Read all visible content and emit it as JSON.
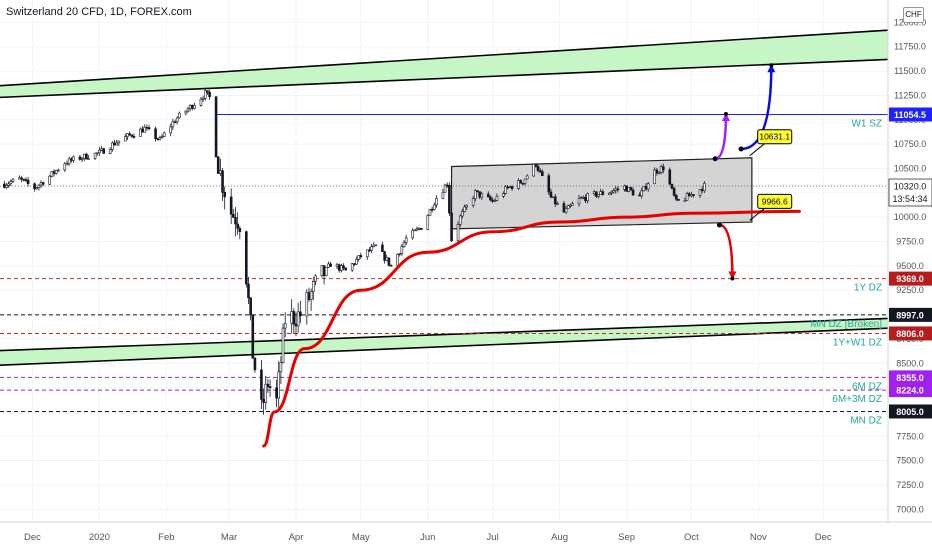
{
  "header": {
    "title": "Switzerland 20 CFD, 1D, FOREX.com",
    "currency_button": "CHF"
  },
  "colors": {
    "up_candle": "#131722",
    "down_candle": "#131722",
    "channel_fill": "#cfcfcf",
    "zone_fill": "#c6f5c6",
    "curve": "#e60000",
    "w1_line": "#1f22ff",
    "purple_arrow": "#a020f0",
    "blue_arrow": "#0a0ae6",
    "red_arrow": "#e60000",
    "zone_label_text": "#26a69a"
  },
  "chart_data": {
    "type": "candlestick",
    "symbol": "Switzerland 20 CFD",
    "interval": "1D",
    "source": "FOREX.com",
    "ylim": [
      6870,
      12230
    ],
    "y_ticks": [
      7000,
      7250,
      7500,
      7750,
      8000,
      8250,
      8500,
      8750,
      9000,
      9250,
      9500,
      9750,
      10000,
      10250,
      10500,
      10750,
      11000,
      11250,
      11500,
      11750,
      12000
    ],
    "y_tick_labels": [
      "7000.0",
      "7250.0",
      "7500.0",
      "7750.0",
      "8000.0",
      "8250.0",
      "8500.0",
      "8750.0",
      "9000.0",
      "9250.0",
      "9500.0",
      "9750.0",
      "10000.0",
      "10250.0",
      "10500.0",
      "10750.0",
      "11000.0",
      "11250.0",
      "11500.0",
      "11750.0",
      "12000.0"
    ],
    "x_tick_labels": [
      {
        "label": "Dec",
        "date": "2019-12-01"
      },
      {
        "label": "2020",
        "date": "2020-01-01"
      },
      {
        "label": "Feb",
        "date": "2020-02-01"
      },
      {
        "label": "Mar",
        "date": "2020-03-01"
      },
      {
        "label": "Apr",
        "date": "2020-04-01"
      },
      {
        "label": "May",
        "date": "2020-05-01"
      },
      {
        "label": "Jun",
        "date": "2020-06-01"
      },
      {
        "label": "Jul",
        "date": "2020-07-01"
      },
      {
        "label": "Aug",
        "date": "2020-08-01"
      },
      {
        "label": "Sep",
        "date": "2020-09-01"
      },
      {
        "label": "Oct",
        "date": "2020-10-01"
      },
      {
        "label": "Nov",
        "date": "2020-11-01"
      },
      {
        "label": "Dec",
        "date": "2020-12-01"
      }
    ],
    "xlim": [
      "2019-11-16",
      "2020-12-31"
    ],
    "price_path": [
      [
        "2019-11-18",
        10340
      ],
      [
        "2019-11-25",
        10390
      ],
      [
        "2019-12-02",
        10300
      ],
      [
        "2019-12-09",
        10420
      ],
      [
        "2019-12-16",
        10560
      ],
      [
        "2019-12-23",
        10610
      ],
      [
        "2020-01-01",
        10660
      ],
      [
        "2020-01-08",
        10760
      ],
      [
        "2020-01-15",
        10840
      ],
      [
        "2020-01-22",
        10910
      ],
      [
        "2020-01-29",
        10790
      ],
      [
        "2020-02-05",
        11000
      ],
      [
        "2020-02-12",
        11130
      ],
      [
        "2020-02-19",
        11270
      ],
      [
        "2020-02-21",
        11230
      ],
      [
        "2020-02-24",
        10650
      ],
      [
        "2020-02-27",
        10350
      ],
      [
        "2020-03-02",
        10050
      ],
      [
        "2020-03-06",
        9950
      ],
      [
        "2020-03-09",
        9400
      ],
      [
        "2020-03-12",
        8600
      ],
      [
        "2020-03-16",
        8020
      ],
      [
        "2020-03-19",
        8300
      ],
      [
        "2020-03-23",
        8100
      ],
      [
        "2020-03-27",
        8950
      ],
      [
        "2020-04-03",
        9000
      ],
      [
        "2020-04-10",
        9300
      ],
      [
        "2020-04-17",
        9520
      ],
      [
        "2020-04-24",
        9450
      ],
      [
        "2020-05-01",
        9600
      ],
      [
        "2020-05-08",
        9700
      ],
      [
        "2020-05-15",
        9500
      ],
      [
        "2020-05-22",
        9780
      ],
      [
        "2020-05-29",
        9900
      ],
      [
        "2020-06-05",
        10200
      ],
      [
        "2020-06-10",
        10350
      ],
      [
        "2020-06-12",
        9770
      ],
      [
        "2020-06-16",
        10000
      ],
      [
        "2020-06-23",
        10250
      ],
      [
        "2020-07-01",
        10160
      ],
      [
        "2020-07-08",
        10300
      ],
      [
        "2020-07-15",
        10370
      ],
      [
        "2020-07-21",
        10550
      ],
      [
        "2020-07-28",
        10200
      ],
      [
        "2020-08-03",
        10050
      ],
      [
        "2020-08-10",
        10180
      ],
      [
        "2020-08-17",
        10230
      ],
      [
        "2020-08-24",
        10260
      ],
      [
        "2020-08-31",
        10310
      ],
      [
        "2020-09-07",
        10210
      ],
      [
        "2020-09-14",
        10470
      ],
      [
        "2020-09-18",
        10510
      ],
      [
        "2020-09-24",
        10150
      ],
      [
        "2020-10-01",
        10230
      ],
      [
        "2020-10-07",
        10320
      ]
    ],
    "channel": {
      "start": "2020-06-12",
      "end": "2020-10-29",
      "upper_start": 10520,
      "upper_end": 10610,
      "lower_start": 9880,
      "lower_end": 9950
    },
    "upper_zone": {
      "start": "2019-11-16",
      "end": "2020-12-31",
      "top_start": 11350,
      "top_end": 11920,
      "bottom_start": 11230,
      "bottom_end": 11620
    },
    "lower_zone": {
      "start": "2019-11-16",
      "end": "2020-12-31",
      "top_start": 8630,
      "top_end": 8960,
      "bottom_start": 8480,
      "bottom_end": 8860
    },
    "curve": {
      "points": [
        [
          "2020-03-17",
          7650
        ],
        [
          "2020-03-22",
          8000
        ],
        [
          "2020-04-05",
          8650
        ],
        [
          "2020-05-01",
          9250
        ],
        [
          "2020-06-01",
          9640
        ],
        [
          "2020-07-01",
          9850
        ],
        [
          "2020-08-01",
          9950
        ],
        [
          "2020-09-01",
          10000
        ],
        [
          "2020-10-01",
          10040
        ],
        [
          "2020-11-20",
          10060
        ]
      ]
    },
    "horizontal_levels": [
      {
        "value": 11054.5,
        "label": "W1 SZ",
        "price_label": "11054.5",
        "style": "solid",
        "color": "#1f22ff",
        "from": "2020-02-24",
        "tag_bg": "#1f22ff"
      },
      {
        "value": 9369.0,
        "label": "1Y DZ",
        "price_label": "9369.0",
        "style": "dashed",
        "color": "#c62828",
        "tag_bg": "#b71c1c"
      },
      {
        "value": 8997.0,
        "label": "MN DZ [Broken]",
        "price_label": "8997.0",
        "style": "dashed",
        "color": "#131722",
        "tag_bg": "#131722"
      },
      {
        "value": 8806.0,
        "label": "1Y+W1 DZ",
        "price_label": "8806.0",
        "style": "dashed",
        "color": "#c62828",
        "tag_bg": "#b71c1c"
      },
      {
        "value": 8355.0,
        "label": "6M DZ",
        "price_label": "8355.0",
        "style": "dashed",
        "color": "#9c27b0",
        "tag_bg": "#a020f0"
      },
      {
        "value": 8224.0,
        "label": "6M+3M DZ",
        "price_label": "8224.0",
        "style": "dashed",
        "color": "#9c27b0",
        "tag_bg": "#a020f0"
      },
      {
        "value": 8005.0,
        "label": "MN DZ",
        "price_label": "8005.0",
        "style": "dashed",
        "color": "#131722",
        "tag_bg": "#131722"
      }
    ],
    "current_price": {
      "value": 10320.0,
      "price_label": "10320.0",
      "countdown": "13:54:34"
    },
    "callouts": [
      {
        "text": "10631.1",
        "value": 10631.1,
        "date": "2020-10-28"
      },
      {
        "text": "9966.6",
        "value": 9966.6,
        "date": "2020-10-28"
      }
    ],
    "arrows": [
      {
        "color": "purple",
        "from": [
          "2020-10-12",
          10600
        ],
        "to": [
          "2020-10-17",
          11060
        ]
      },
      {
        "color": "blue",
        "from": [
          "2020-10-24",
          10700
        ],
        "to": [
          "2020-11-07",
          11560
        ]
      },
      {
        "color": "red",
        "from": [
          "2020-10-14",
          9920
        ],
        "to": [
          "2020-10-20",
          9370
        ]
      }
    ]
  }
}
